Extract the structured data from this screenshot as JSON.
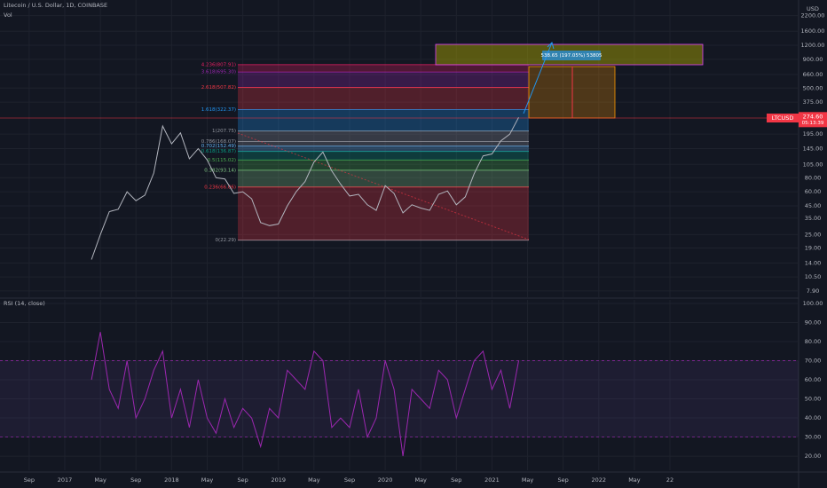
{
  "header": {
    "symbol": "Litecoin / U.S. Dollar, 1D, COINBASE",
    "volume": "Vol",
    "rsi": "RSI (14, close)",
    "currency": "USD"
  },
  "chart_data": [
    {
      "type": "line",
      "log_scale": true,
      "grid": true,
      "color": "#9598a1",
      "ylim": [
        6.94,
        3030
      ],
      "yticks": [
        {
          "value": 2200,
          "label": "2200.00"
        },
        {
          "value": 1600,
          "label": "1600.00"
        },
        {
          "value": 1200,
          "label": "1200.00"
        },
        {
          "value": 900,
          "label": "900.00"
        },
        {
          "value": 660,
          "label": "660.00"
        },
        {
          "value": 500,
          "label": "500.00"
        },
        {
          "value": 375,
          "label": "375.00"
        },
        {
          "value": 195,
          "label": "195.00"
        },
        {
          "value": 145,
          "label": "145.00"
        },
        {
          "value": 105,
          "label": "105.00"
        },
        {
          "value": 80,
          "label": "80.00"
        },
        {
          "value": 60,
          "label": "60.00"
        },
        {
          "value": 45,
          "label": "45.00"
        },
        {
          "value": 35,
          "label": "35.00"
        },
        {
          "value": 25,
          "label": "25.00"
        },
        {
          "value": 19,
          "label": "19.00"
        },
        {
          "value": 14,
          "label": "14.00"
        },
        {
          "value": 10.5,
          "label": "10.50"
        },
        {
          "value": 7.9,
          "label": "7.90"
        }
      ],
      "xticks": [
        {
          "value": "2016-09",
          "label": "Sep"
        },
        {
          "value": "2017-01",
          "label": "2017"
        },
        {
          "value": "2017-05",
          "label": "May"
        },
        {
          "value": "2017-09",
          "label": "Sep"
        },
        {
          "value": "2018-01",
          "label": "2018"
        },
        {
          "value": "2018-05",
          "label": "May"
        },
        {
          "value": "2018-09",
          "label": "Sep"
        },
        {
          "value": "2019-01",
          "label": "2019"
        },
        {
          "value": "2019-05",
          "label": "May"
        },
        {
          "value": "2019-09",
          "label": "Sep"
        },
        {
          "value": "2020-01",
          "label": "2020"
        },
        {
          "value": "2020-05",
          "label": "May"
        },
        {
          "value": "2020-09",
          "label": "Sep"
        },
        {
          "value": "2021-01",
          "label": "2021"
        },
        {
          "value": "2021-05",
          "label": "May"
        },
        {
          "value": "2021-09",
          "label": "Sep"
        },
        {
          "value": "2022-01",
          "label": "2022"
        },
        {
          "value": "2022-05",
          "label": "May"
        },
        {
          "value": "2022-09",
          "label": "22"
        }
      ],
      "x": [
        "2017-04",
        "2017-05",
        "2017-06",
        "2017-07",
        "2017-08",
        "2017-09",
        "2017-10",
        "2017-11",
        "2017-12",
        "2018-01",
        "2018-02",
        "2018-03",
        "2018-04",
        "2018-05",
        "2018-06",
        "2018-07",
        "2018-08",
        "2018-09",
        "2018-10",
        "2018-11",
        "2018-12",
        "2019-01",
        "2019-02",
        "2019-03",
        "2019-04",
        "2019-05",
        "2019-06",
        "2019-07",
        "2019-08",
        "2019-09",
        "2019-10",
        "2019-11",
        "2019-12",
        "2020-01",
        "2020-02",
        "2020-03",
        "2020-04",
        "2020-05",
        "2020-06",
        "2020-07",
        "2020-08",
        "2020-09",
        "2020-10",
        "2020-11",
        "2020-12",
        "2021-01",
        "2021-02",
        "2021-03",
        "2021-04"
      ],
      "series": [
        {
          "name": "LTCUSD",
          "color": "#b2b5be",
          "values": [
            15,
            25,
            40,
            42,
            60,
            50,
            56,
            88,
            230,
            160,
            200,
            118,
            145,
            115,
            80,
            78,
            58,
            60,
            52,
            32,
            30,
            31,
            45,
            60,
            74,
            110,
            135,
            92,
            70,
            55,
            57,
            46,
            41,
            68,
            58,
            39,
            46,
            43,
            41,
            57,
            61,
            46,
            54,
            87,
            125,
            130,
            170,
            195,
            274.6
          ]
        }
      ],
      "last_price": {
        "value": 274.6,
        "label": "274.60"
      },
      "countdown": "05:13:39",
      "fib_levels": [
        {
          "label": "0(22.29)",
          "price": 22.29,
          "color": "#9598a1"
        },
        {
          "label": "0.236(66.06)",
          "price": 66.06,
          "color": "#f23645"
        },
        {
          "label": "0.382(93.14)",
          "price": 93.14,
          "color": "#81c784"
        },
        {
          "label": "0.5(115.02)",
          "price": 115.02,
          "color": "#4caf50"
        },
        {
          "label": "0.618(136.87)",
          "price": 136.87,
          "color": "#089981"
        },
        {
          "label": "0.702(152.49)",
          "price": 152.49,
          "color": "#64b5f6"
        },
        {
          "label": "0.786(168.07)",
          "price": 168.07,
          "color": "#9598a1"
        },
        {
          "label": "1(207.75)",
          "price": 207.75,
          "color": "#9598a1"
        },
        {
          "label": "1.618(322.37)",
          "price": 322.37,
          "color": "#2196f3"
        },
        {
          "label": "2.618(507.82)",
          "price": 507.82,
          "color": "#f23645"
        },
        {
          "label": "3.618(695.30)",
          "price": 695.3,
          "color": "#9c27b0"
        },
        {
          "label": "4.236(807.91)",
          "price": 807.91,
          "color": "#e91e63"
        }
      ],
      "measure_label": "538.65 (197.05%) 53805"
    },
    {
      "type": "line",
      "color": "#9c27b0",
      "ylim": [
        12.6,
        101.85
      ],
      "yticks": [
        {
          "value": 100,
          "label": "100.00"
        },
        {
          "value": 90,
          "label": "90.00"
        },
        {
          "value": 80,
          "label": "80.00"
        },
        {
          "value": 70,
          "label": "70.00"
        },
        {
          "value": 60,
          "label": "60.00"
        },
        {
          "value": 50,
          "label": "50.00"
        },
        {
          "value": 40,
          "label": "40.00"
        },
        {
          "value": 30,
          "label": "30.00"
        },
        {
          "value": 20,
          "label": "20.00"
        }
      ],
      "bands": [
        30,
        70
      ],
      "x": [
        "2017-04",
        "2017-05",
        "2017-06",
        "2017-07",
        "2017-08",
        "2017-09",
        "2017-10",
        "2017-11",
        "2017-12",
        "2018-01",
        "2018-02",
        "2018-03",
        "2018-04",
        "2018-05",
        "2018-06",
        "2018-07",
        "2018-08",
        "2018-09",
        "2018-10",
        "2018-11",
        "2018-12",
        "2019-01",
        "2019-02",
        "2019-03",
        "2019-04",
        "2019-05",
        "2019-06",
        "2019-07",
        "2019-08",
        "2019-09",
        "2019-10",
        "2019-11",
        "2019-12",
        "2020-01",
        "2020-02",
        "2020-03",
        "2020-04",
        "2020-05",
        "2020-06",
        "2020-07",
        "2020-08",
        "2020-09",
        "2020-10",
        "2020-11",
        "2020-12",
        "2021-01",
        "2021-02",
        "2021-03",
        "2021-04"
      ],
      "series": [
        {
          "color": "#9c27b0",
          "values": [
            60,
            85,
            55,
            45,
            70,
            40,
            50,
            65,
            75,
            40,
            55,
            35,
            60,
            40,
            32,
            50,
            35,
            45,
            40,
            25,
            45,
            40,
            65,
            60,
            55,
            75,
            70,
            35,
            40,
            35,
            55,
            30,
            40,
            70,
            55,
            20,
            55,
            50,
            45,
            65,
            60,
            40,
            55,
            70,
            75,
            55,
            65,
            45,
            70
          ]
        }
      ]
    }
  ]
}
